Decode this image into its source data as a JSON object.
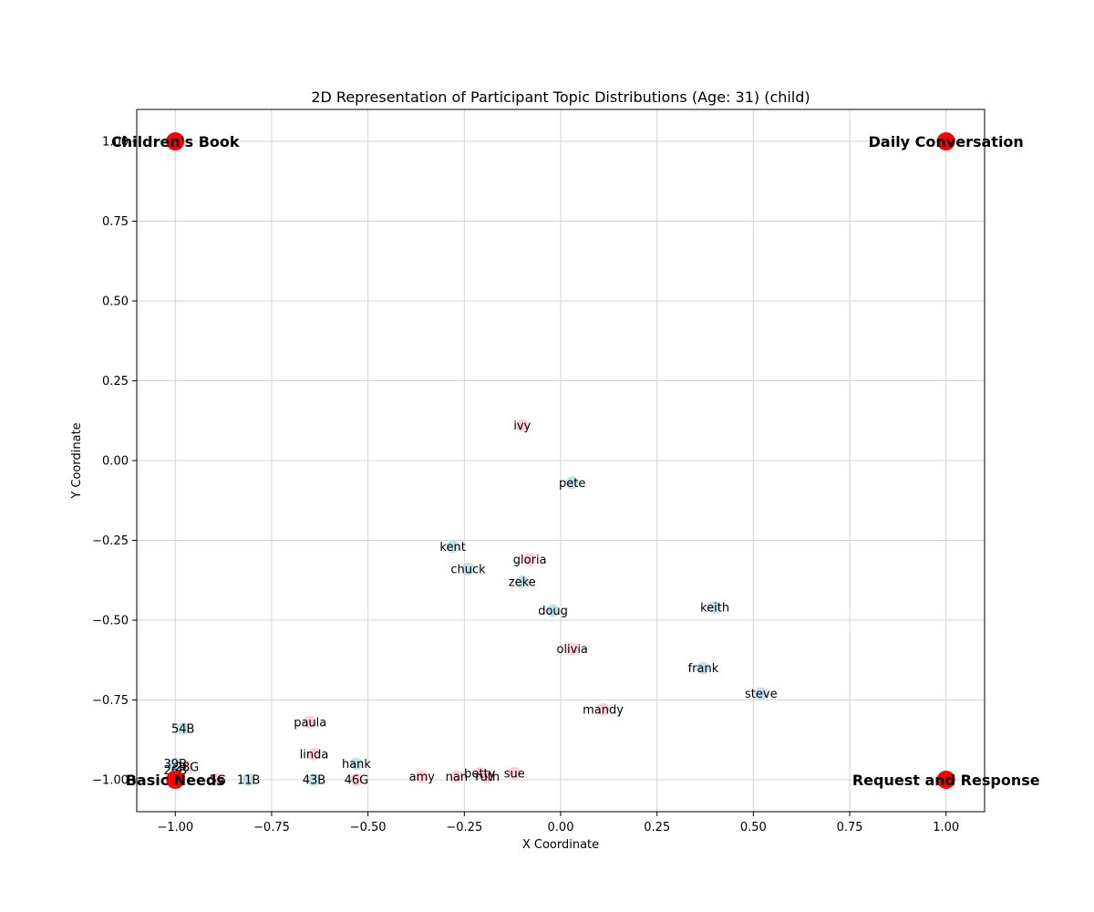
{
  "chart_data": {
    "type": "scatter",
    "title": "2D Representation of Participant Topic Distributions (Age: 31) (child)",
    "xlabel": "X Coordinate",
    "ylabel": "Y Coordinate",
    "xlim": [
      -1.1,
      1.1
    ],
    "ylim": [
      -1.1,
      1.1
    ],
    "xticks": [
      -1.0,
      -0.75,
      -0.5,
      -0.25,
      0.0,
      0.25,
      0.5,
      0.75,
      1.0
    ],
    "xtick_labels": [
      "−1.00",
      "−0.75",
      "−0.50",
      "−0.25",
      "0.00",
      "0.25",
      "0.50",
      "0.75",
      "1.00"
    ],
    "yticks": [
      -1.0,
      -0.75,
      -0.5,
      -0.25,
      0.0,
      0.25,
      0.5,
      0.75,
      1.0
    ],
    "ytick_labels": [
      "−1.00",
      "−0.75",
      "−0.50",
      "−0.25",
      "0.00",
      "0.25",
      "0.50",
      "0.75",
      "1.00"
    ],
    "grid": true,
    "colors": {
      "boy": "#add8e6",
      "girl": "#ffc0cb",
      "anchor": "#ff0000"
    },
    "anchors": [
      {
        "label": "Children's Book",
        "x": -1.0,
        "y": 1.0
      },
      {
        "label": "Daily Conversation",
        "x": 1.0,
        "y": 1.0
      },
      {
        "label": "Basic Needs",
        "x": -1.0,
        "y": -1.0
      },
      {
        "label": "Request and Response",
        "x": 1.0,
        "y": -1.0
      }
    ],
    "points": [
      {
        "label": "ivy",
        "x": -0.1,
        "y": 0.11,
        "group": "girl"
      },
      {
        "label": "pete",
        "x": 0.03,
        "y": -0.07,
        "group": "boy"
      },
      {
        "label": "kent",
        "x": -0.28,
        "y": -0.27,
        "group": "boy"
      },
      {
        "label": "gloria",
        "x": -0.08,
        "y": -0.31,
        "group": "girl"
      },
      {
        "label": "chuck",
        "x": -0.24,
        "y": -0.34,
        "group": "boy"
      },
      {
        "label": "zeke",
        "x": -0.1,
        "y": -0.38,
        "group": "boy"
      },
      {
        "label": "doug",
        "x": -0.02,
        "y": -0.47,
        "group": "boy"
      },
      {
        "label": "keith",
        "x": 0.4,
        "y": -0.46,
        "group": "boy"
      },
      {
        "label": "olivia",
        "x": 0.03,
        "y": -0.59,
        "group": "girl"
      },
      {
        "label": "frank",
        "x": 0.37,
        "y": -0.65,
        "group": "boy"
      },
      {
        "label": "steve",
        "x": 0.52,
        "y": -0.73,
        "group": "boy"
      },
      {
        "label": "mandy",
        "x": 0.11,
        "y": -0.78,
        "group": "girl"
      },
      {
        "label": "paula",
        "x": -0.65,
        "y": -0.82,
        "group": "girl"
      },
      {
        "label": "54B",
        "x": -0.98,
        "y": -0.84,
        "group": "boy"
      },
      {
        "label": "linda",
        "x": -0.64,
        "y": -0.92,
        "group": "girl"
      },
      {
        "label": "hank",
        "x": -0.53,
        "y": -0.95,
        "group": "boy"
      },
      {
        "label": "39B",
        "x": -1.0,
        "y": -0.95,
        "group": "boy"
      },
      {
        "label": "28G",
        "x": -0.97,
        "y": -0.96,
        "group": "girl"
      },
      {
        "label": "26B",
        "x": -1.0,
        "y": -0.97,
        "group": "boy"
      },
      {
        "label": "amy",
        "x": -0.36,
        "y": -0.99,
        "group": "girl"
      },
      {
        "label": "betty",
        "x": -0.21,
        "y": -0.98,
        "group": "girl"
      },
      {
        "label": "nan",
        "x": -0.27,
        "y": -0.99,
        "group": "girl"
      },
      {
        "label": "ruth",
        "x": -0.19,
        "y": -0.99,
        "group": "girl"
      },
      {
        "label": "sue",
        "x": -0.12,
        "y": -0.98,
        "group": "girl"
      },
      {
        "label": "5G",
        "x": -0.89,
        "y": -1.0,
        "group": "girl"
      },
      {
        "label": "11B",
        "x": -0.81,
        "y": -1.0,
        "group": "boy"
      },
      {
        "label": "43B",
        "x": -0.64,
        "y": -1.0,
        "group": "boy"
      },
      {
        "label": "46G",
        "x": -0.53,
        "y": -1.0,
        "group": "girl"
      },
      {
        "label": "",
        "x": -1.0,
        "y": -1.0,
        "group": "boy"
      },
      {
        "label": "",
        "x": -0.99,
        "y": -1.0,
        "group": "girl"
      }
    ]
  }
}
